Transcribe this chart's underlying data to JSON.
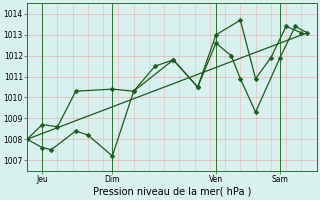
{
  "title": "",
  "xlabel": "Pression niveau de la mer( hPa )",
  "bg_color": "#d8f0ee",
  "grid_color_h": "#e8b8b8",
  "grid_color_v": "#e8b8b8",
  "line_color": "#1a5c1a",
  "xlim": [
    0,
    9.5
  ],
  "ylim": [
    1006.5,
    1014.5
  ],
  "yticks": [
    1007,
    1008,
    1009,
    1010,
    1011,
    1012,
    1013,
    1014
  ],
  "xtick_positions": [
    0.5,
    2.8,
    6.2,
    8.3
  ],
  "xtick_labels": [
    "Jeu",
    "Dim",
    "Ven",
    "Sam"
  ],
  "vline_positions": [
    0.5,
    2.8,
    6.2,
    8.3
  ],
  "series1_x": [
    0.0,
    0.5,
    0.8,
    1.6,
    2.0,
    2.8,
    3.5,
    4.8,
    5.6,
    6.2,
    7.0,
    7.5,
    8.0,
    8.5,
    9.0
  ],
  "series1_y": [
    1008.0,
    1007.6,
    1007.5,
    1008.4,
    1008.2,
    1007.2,
    1010.3,
    1011.8,
    1010.5,
    1013.0,
    1013.7,
    1010.9,
    1011.9,
    1013.4,
    1013.1
  ],
  "series2_x": [
    0.0,
    0.5,
    1.0,
    1.6,
    2.8,
    3.5,
    4.2,
    4.8,
    5.6,
    6.2,
    6.7,
    7.0,
    7.5,
    8.3,
    8.8,
    9.2
  ],
  "series2_y": [
    1008.0,
    1008.7,
    1008.6,
    1010.3,
    1010.4,
    1010.3,
    1011.5,
    1011.8,
    1010.5,
    1012.6,
    1012.0,
    1010.9,
    1009.3,
    1011.9,
    1013.4,
    1013.1
  ],
  "series3_x": [
    0.0,
    9.2
  ],
  "series3_y": [
    1008.0,
    1013.1
  ],
  "figsize": [
    3.2,
    2.0
  ],
  "dpi": 100,
  "ylabel_fontsize": 5.5,
  "xlabel_fontsize": 7.0,
  "tick_fontsize": 5.5,
  "linewidth": 0.9,
  "markersize": 2.5
}
